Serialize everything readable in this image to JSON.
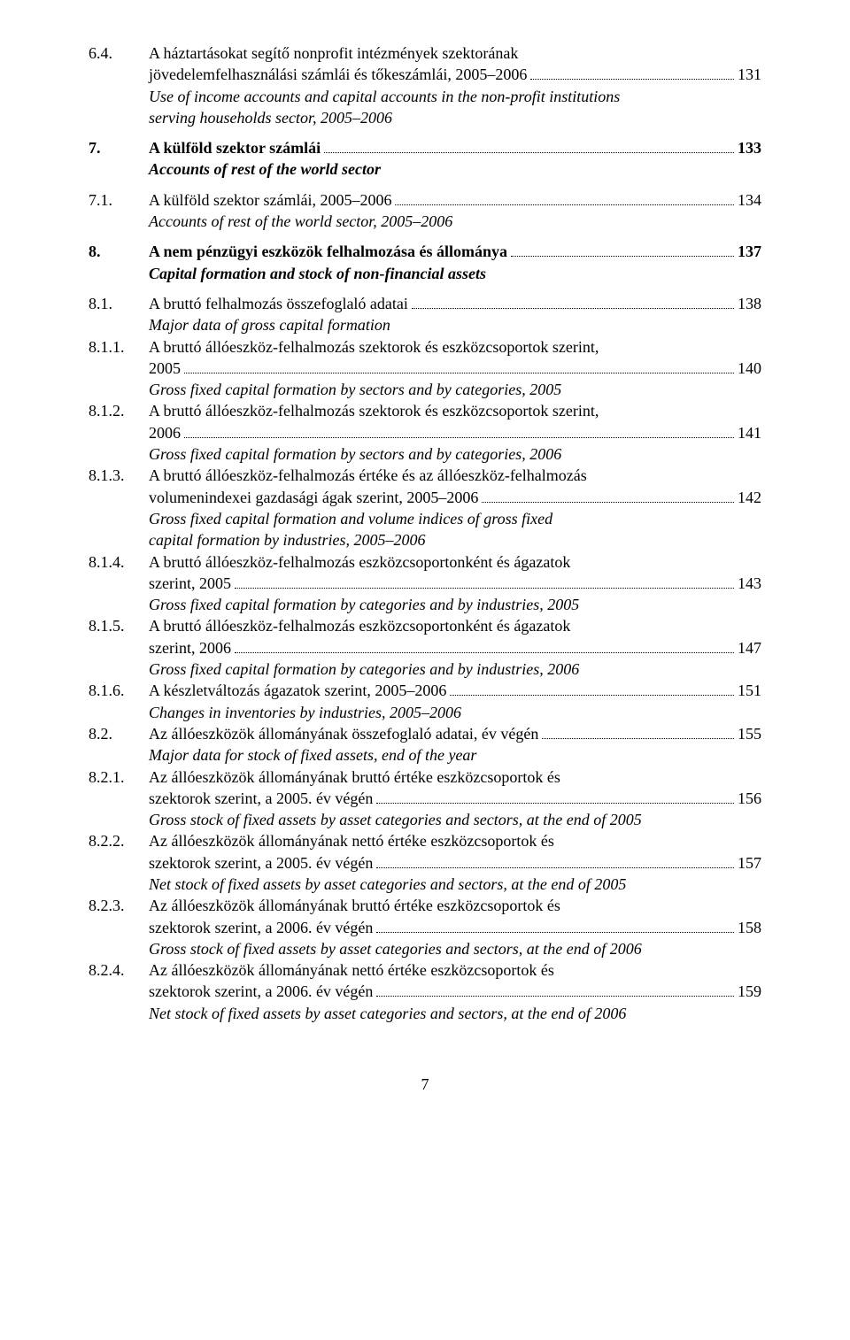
{
  "page_number": "7",
  "font_family": "Times New Roman",
  "text_color": "#000000",
  "background_color": "#ffffff",
  "entries": [
    {
      "num": "6.4.",
      "lines": [
        {
          "text": "A háztartásokat segítő nonprofit intézmények szektorának"
        },
        {
          "text": "jövedelemfelhasználási számlái és tőkeszámlái, 2005–2006",
          "page": "131"
        }
      ],
      "sublines": [
        {
          "text": "Use of income accounts and capital accounts in the non-profit institutions",
          "italic": true
        },
        {
          "text": "serving households sector, 2005–2006",
          "italic": true
        }
      ]
    },
    {
      "num": "7.",
      "bold": true,
      "lines": [
        {
          "text": "A külföld szektor számlái",
          "page": "133"
        }
      ],
      "sublines": [
        {
          "text": "Accounts of rest of the world sector",
          "italic": true,
          "bold": true
        }
      ]
    },
    {
      "num": "7.1.",
      "lines": [
        {
          "text": "A külföld szektor számlái, 2005–2006",
          "page": "134"
        }
      ],
      "sublines": [
        {
          "text": "Accounts of rest of the world sector, 2005–2006",
          "italic": true
        }
      ]
    },
    {
      "num": "8.",
      "bold": true,
      "lines": [
        {
          "text": "A nem pénzügyi eszközök felhalmozása és állománya",
          "page": "137"
        }
      ],
      "sublines": [
        {
          "text": "Capital formation and stock of non-financial assets",
          "italic": true,
          "bold": true
        }
      ]
    },
    {
      "num": "8.1.",
      "lines": [
        {
          "text": "A bruttó felhalmozás összefoglaló adatai",
          "page": "138"
        }
      ],
      "sublines": [
        {
          "text": "Major data of gross capital formation",
          "italic": true
        }
      ]
    },
    {
      "num": "8.1.1.",
      "lines": [
        {
          "text": "A bruttó állóeszköz-felhalmozás szektorok és eszközcsoportok szerint,"
        },
        {
          "text": "2005",
          "page": "140"
        }
      ],
      "sublines": [
        {
          "text": "Gross fixed capital formation by sectors and by categories, 2005",
          "italic": true
        }
      ]
    },
    {
      "num": "8.1.2.",
      "lines": [
        {
          "text": "A bruttó állóeszköz-felhalmozás szektorok és eszközcsoportok szerint,"
        },
        {
          "text": "2006",
          "page": "141"
        }
      ],
      "sublines": [
        {
          "text": "Gross fixed capital formation by sectors and by categories, 2006",
          "italic": true
        }
      ]
    },
    {
      "num": "8.1.3.",
      "lines": [
        {
          "text": "A bruttó állóeszköz-felhalmozás értéke és az állóeszköz-felhalmozás"
        },
        {
          "text": "volumenindexei gazdasági ágak szerint, 2005–2006",
          "page": "142"
        }
      ],
      "sublines": [
        {
          "text": "Gross fixed capital formation and volume indices of gross fixed",
          "italic": true
        },
        {
          "text": "capital formation by industries, 2005–2006",
          "italic": true
        }
      ]
    },
    {
      "num": "8.1.4.",
      "lines": [
        {
          "text": "A bruttó állóeszköz-felhalmozás eszközcsoportonként és ágazatok"
        },
        {
          "text": "szerint, 2005",
          "page": "143"
        }
      ],
      "sublines": [
        {
          "text": "Gross fixed capital formation by categories and by industries, 2005",
          "italic": true
        }
      ]
    },
    {
      "num": "8.1.5.",
      "lines": [
        {
          "text": "A bruttó állóeszköz-felhalmozás eszközcsoportonként és ágazatok"
        },
        {
          "text": "szerint, 2006",
          "page": "147"
        }
      ],
      "sublines": [
        {
          "text": "Gross fixed capital formation by categories and by industries, 2006",
          "italic": true
        }
      ]
    },
    {
      "num": "8.1.6.",
      "lines": [
        {
          "text": "A készletváltozás ágazatok szerint, 2005–2006",
          "page": "151"
        }
      ],
      "sublines": [
        {
          "text": "Changes in inventories by industries, 2005–2006",
          "italic": true
        }
      ]
    },
    {
      "num": "8.2.",
      "lines": [
        {
          "text": "Az állóeszközök állományának összefoglaló adatai, év végén",
          "page": "155"
        }
      ],
      "sublines": [
        {
          "text": "Major data for stock of fixed assets, end of the year",
          "italic": true
        }
      ]
    },
    {
      "num": "8.2.1.",
      "lines": [
        {
          "text": "Az állóeszközök állományának bruttó értéke eszközcsoportok és"
        },
        {
          "text": "szektorok szerint, a 2005. év végén",
          "page": "156"
        }
      ],
      "sublines": [
        {
          "text": "Gross stock of fixed assets by asset categories and sectors, at the end of 2005",
          "italic": true
        }
      ]
    },
    {
      "num": "8.2.2.",
      "lines": [
        {
          "text": "Az állóeszközök állományának nettó értéke eszközcsoportok és"
        },
        {
          "text": "szektorok szerint, a 2005. év végén",
          "page": "157"
        }
      ],
      "sublines": [
        {
          "text": "Net stock of fixed assets by asset categories and sectors, at the end of 2005",
          "italic": true
        }
      ]
    },
    {
      "num": "8.2.3.",
      "lines": [
        {
          "text": "Az állóeszközök állományának bruttó értéke eszközcsoportok és"
        },
        {
          "text": "szektorok szerint, a 2006. év végén",
          "page": "158"
        }
      ],
      "sublines": [
        {
          "text": "Gross stock of fixed assets by asset categories and sectors, at the end of 2006",
          "italic": true
        }
      ]
    },
    {
      "num": "8.2.4.",
      "lines": [
        {
          "text": "Az állóeszközök állományának nettó értéke eszközcsoportok és"
        },
        {
          "text": "szektorok szerint, a 2006. év végén",
          "page": "159"
        }
      ],
      "sublines": [
        {
          "text": "Net stock of fixed assets by asset categories and sectors, at the end of 2006",
          "italic": true
        }
      ]
    }
  ]
}
